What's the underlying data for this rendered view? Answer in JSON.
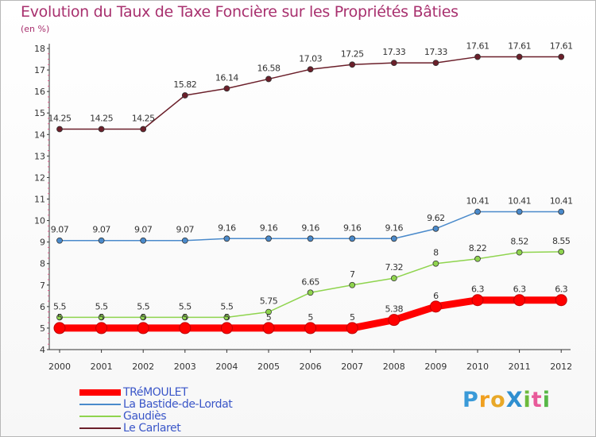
{
  "title": "Evolution du Taux de Taxe Foncière sur les Propriétés Bâties",
  "unit_label": "(en %)",
  "logo": {
    "text": "ProXiti",
    "letters": [
      {
        "ch": "P",
        "color": "#3a9ad8"
      },
      {
        "ch": "r",
        "color": "#f0a020"
      },
      {
        "ch": "o",
        "color": "#e8a828"
      },
      {
        "ch": "X",
        "color": "#2f8fd0"
      },
      {
        "ch": "i",
        "color": "#6cba3c"
      },
      {
        "ch": "t",
        "color": "#e85a9a"
      },
      {
        "ch": "i",
        "color": "#58b848"
      }
    ]
  },
  "chart_data": {
    "type": "line",
    "title": "Evolution du Taux de Taxe Foncière sur les Propriétés Bâties",
    "ylabel": "(en %)",
    "xlabel": "",
    "x": [
      "2000",
      "2001",
      "2002",
      "2003",
      "2004",
      "2005",
      "2006",
      "2007",
      "2008",
      "2009",
      "2010",
      "2011",
      "2012"
    ],
    "ylim": [
      4,
      18
    ],
    "yticks": [
      "4",
      "5",
      "6",
      "7",
      "8",
      "9",
      "10",
      "11",
      "12",
      "13",
      "14",
      "15",
      "16",
      "17",
      "18"
    ],
    "grid": false,
    "legend_position": "bottom-left",
    "series": [
      {
        "name": "TRéMOULET",
        "color": "#ff0000",
        "emphasis": true,
        "values": [
          5,
          5,
          5,
          5,
          5,
          5,
          5,
          5,
          5.38,
          6,
          6.3,
          6.3,
          6.3
        ],
        "labels": [
          "5",
          "5",
          "5",
          "5",
          "5",
          "5",
          "5",
          "5",
          "5.38",
          "6",
          "6.3",
          "6.3",
          "6.3"
        ]
      },
      {
        "name": "La Bastide-de-Lordat",
        "color": "#4a8acb",
        "emphasis": false,
        "values": [
          9.07,
          9.07,
          9.07,
          9.07,
          9.16,
          9.16,
          9.16,
          9.16,
          9.16,
          9.62,
          10.41,
          10.41,
          10.41
        ],
        "labels": [
          "9.07",
          "9.07",
          "9.07",
          "9.07",
          "9.16",
          "9.16",
          "9.16",
          "9.16",
          "9.16",
          "9.62",
          "10.41",
          "10.41",
          "10.41"
        ]
      },
      {
        "name": "Gaudiès",
        "color": "#8fd44e",
        "emphasis": false,
        "values": [
          5.5,
          5.5,
          5.5,
          5.5,
          5.5,
          5.75,
          6.65,
          7,
          7.32,
          8,
          8.22,
          8.52,
          8.55
        ],
        "labels": [
          "5.5",
          "5.5",
          "5.5",
          "5.5",
          "5.5",
          "5.75",
          "6.65",
          "7",
          "7.32",
          "8",
          "8.22",
          "8.52",
          "8.55"
        ]
      },
      {
        "name": "Le Carlaret",
        "color": "#6b1f2a",
        "emphasis": false,
        "values": [
          14.25,
          14.25,
          14.25,
          15.82,
          16.14,
          16.58,
          17.03,
          17.25,
          17.33,
          17.33,
          17.61,
          17.61,
          17.61
        ],
        "labels": [
          "14.25",
          "14.25",
          "14.25",
          "15.82",
          "16.14",
          "16.58",
          "17.03",
          "17.25",
          "17.33",
          "17.33",
          "17.61",
          "17.61",
          "17.61"
        ]
      }
    ]
  }
}
